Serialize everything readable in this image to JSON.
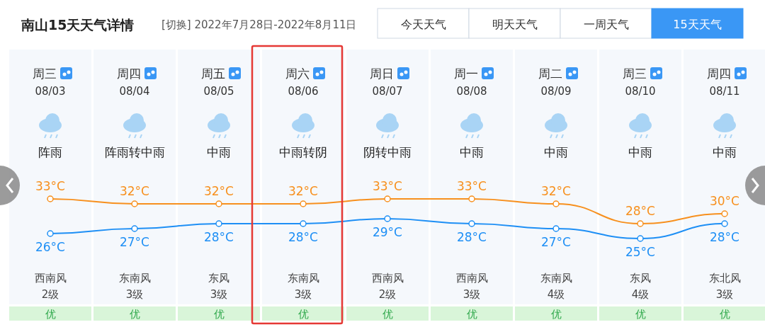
{
  "chart_data": {
    "type": "line",
    "title": "南山15天天气详情",
    "subtitle": "[切换] 2022年7月28日-2022年8月11日",
    "categories": [
      "08/03",
      "08/04",
      "08/05",
      "08/06",
      "08/07",
      "08/08",
      "08/09",
      "08/10",
      "08/11"
    ],
    "series": [
      {
        "color": "#f7901e",
        "values": [
          33,
          32,
          32,
          32,
          33,
          33,
          32,
          28,
          30
        ],
        "value_labels": [
          "33°C",
          "32°C",
          "32°C",
          "32°C",
          "33°C",
          "33°C",
          "32°C",
          "28°C",
          "30°C"
        ]
      },
      {
        "color": "#1e8ff5",
        "values": [
          26,
          27,
          28,
          28,
          29,
          28,
          27,
          25,
          28
        ],
        "value_labels": [
          "26°C",
          "27°C",
          "28°C",
          "28°C",
          "29°C",
          "28°C",
          "27°C",
          "25°C",
          "28°C"
        ]
      }
    ],
    "marker": "circle",
    "annotations": [
      "今天天气",
      "明天天气",
      "一周天气",
      "15天天气",
      "周三",
      "阵雨",
      "西南风",
      "2级",
      "优",
      "周四",
      "阵雨转中雨",
      "东南风",
      "3级",
      "优",
      "周五",
      "中雨",
      "东风",
      "3级",
      "优",
      "周六",
      "中雨转阴",
      "东南风",
      "3级",
      "优",
      "周日",
      "阴转中雨",
      "西南风",
      "2级",
      "优",
      "周一",
      "中雨",
      "西南风",
      "3级",
      "优",
      "周二",
      "中雨",
      "东南风",
      "4级",
      "优",
      "周三",
      "中雨",
      "东风",
      "4级",
      "优",
      "周四",
      "中雨",
      "东北风",
      "3级",
      "优"
    ]
  }
}
